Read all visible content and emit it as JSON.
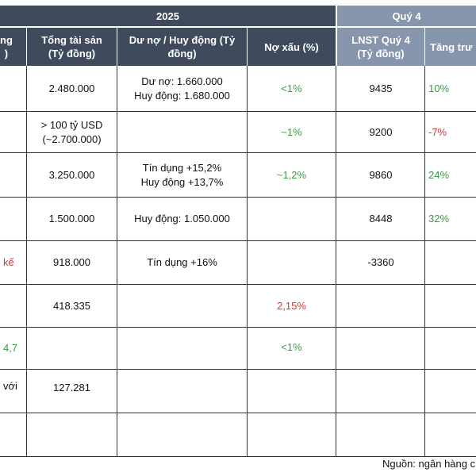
{
  "header": {
    "year": "2025",
    "quarter": "Quý 4",
    "columns": {
      "c0": "ng\n)",
      "total_assets": "Tổng tài sản\n(Tỷ đồng)",
      "debt_mobilize": "Dư nợ / Huy động (Tỷ\nđồng)",
      "npl": "Nợ xấu (%)",
      "lnst_q4": "LNST Quý 4\n(Tỷ đồng)",
      "growth": "Tăng trư"
    }
  },
  "rows": [
    {
      "c0": "",
      "total_assets": "2.480.000",
      "debt_mobilize": "Dư nợ: 1.660.000\nHuy động: 1.680.000",
      "npl": "<1%",
      "lnst_q4": "9435",
      "growth": "10%"
    },
    {
      "c0": "",
      "total_assets": "> 100 tỷ USD\n(~2.700.000)",
      "debt_mobilize": "",
      "npl": "~1%",
      "lnst_q4": "9200",
      "growth": "-7%"
    },
    {
      "c0": "",
      "total_assets": "3.250.000",
      "debt_mobilize": "Tín dụng +15,2%\nHuy động +13,7%",
      "npl": "~1,2%",
      "lnst_q4": "9860",
      "growth": "24%"
    },
    {
      "c0": "",
      "total_assets": "1.500.000",
      "debt_mobilize": "Huy động: 1.050.000",
      "npl": "",
      "lnst_q4": "8448",
      "growth": "32%"
    },
    {
      "c0": "kế",
      "total_assets": "918.000",
      "debt_mobilize": "Tín dụng +16%",
      "npl": "",
      "lnst_q4": "-3360",
      "growth": ""
    },
    {
      "c0": "",
      "total_assets": "418.335",
      "debt_mobilize": "",
      "npl": "2,15%",
      "lnst_q4": "",
      "growth": ""
    },
    {
      "c0": "4,7",
      "total_assets": "",
      "debt_mobilize": "",
      "npl": "<1%",
      "lnst_q4": "",
      "growth": ""
    },
    {
      "c0": "với",
      "total_assets": "127.281",
      "debt_mobilize": "",
      "npl": "",
      "lnst_q4": "",
      "growth": ""
    },
    {
      "c0": "",
      "total_assets": "",
      "debt_mobilize": "",
      "npl": "",
      "lnst_q4": "",
      "growth": ""
    }
  ],
  "source": "Nguồn: ngân hàng c",
  "colors": {
    "header_dark": "#3f4a5c",
    "header_light": "#8896ad",
    "positive": "#3a9a48",
    "negative": "#d03a3a"
  }
}
